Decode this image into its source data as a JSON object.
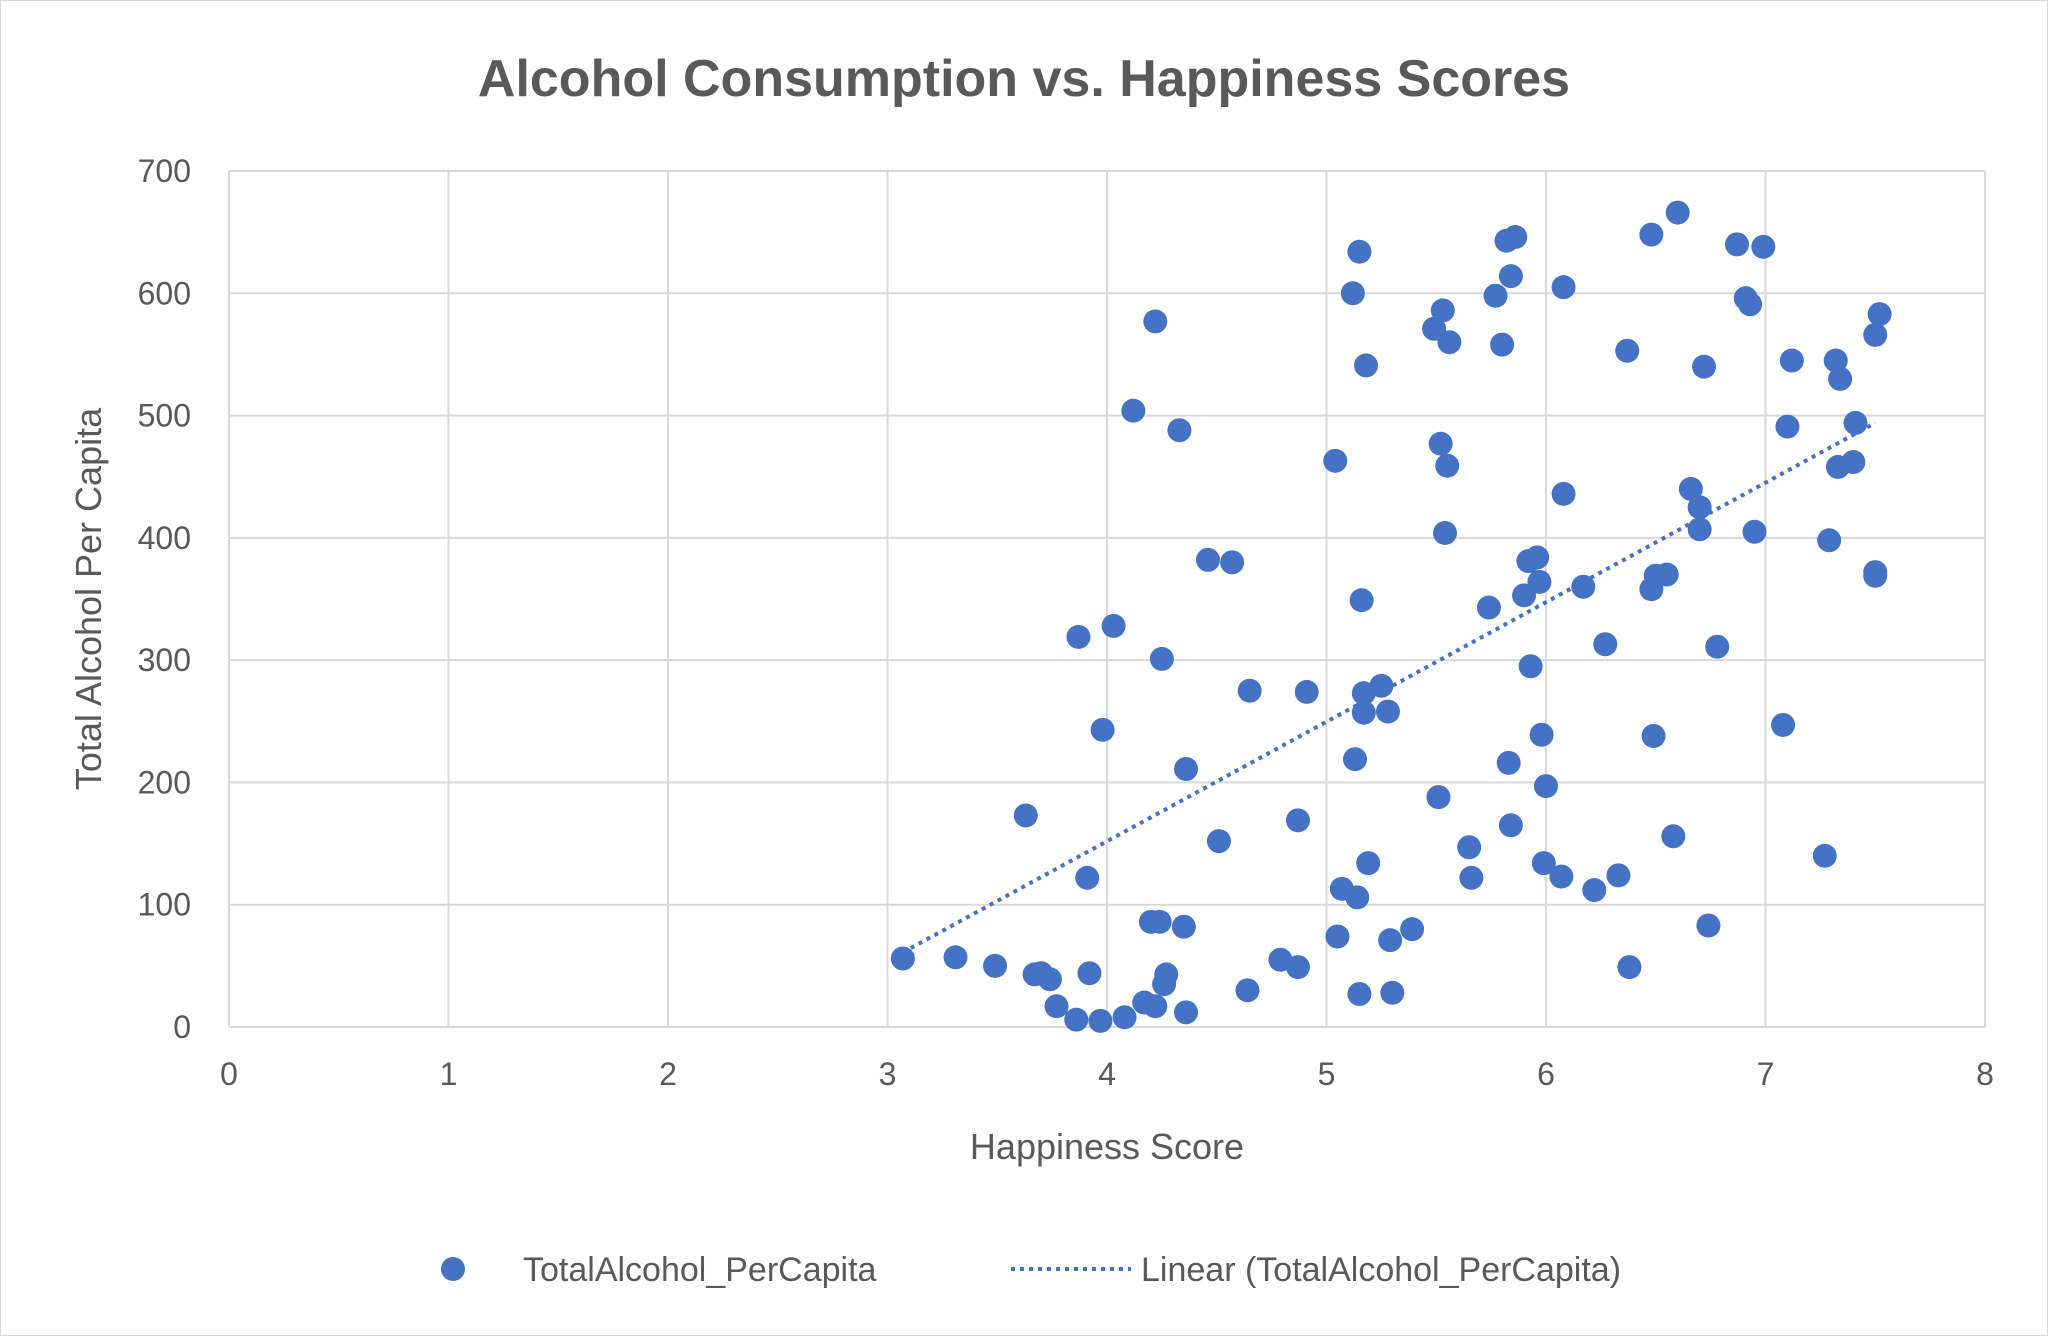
{
  "chart_data": {
    "type": "scatter",
    "title": "Alcohol Consumption vs. Happiness Scores",
    "xlabel": "Happiness Score",
    "ylabel": "Total Alcohol Per Capita",
    "xlim": [
      0,
      8
    ],
    "ylim": [
      0,
      700
    ],
    "xticks": [
      "0",
      "1",
      "2",
      "3",
      "4",
      "5",
      "6",
      "7",
      "8"
    ],
    "yticks": [
      "0",
      "100",
      "200",
      "300",
      "400",
      "500",
      "600",
      "700"
    ],
    "grid": true,
    "legend_position": "bottom",
    "series": [
      {
        "name": "TotalAlcohol_PerCapita",
        "color": "#4472c4",
        "points": [
          [
            3.07,
            56
          ],
          [
            3.31,
            57
          ],
          [
            3.49,
            50
          ],
          [
            3.63,
            173
          ],
          [
            3.67,
            43
          ],
          [
            3.7,
            44
          ],
          [
            3.74,
            39
          ],
          [
            3.77,
            17
          ],
          [
            3.86,
            6
          ],
          [
            3.87,
            319
          ],
          [
            3.91,
            122
          ],
          [
            3.92,
            44
          ],
          [
            3.97,
            5
          ],
          [
            3.98,
            243
          ],
          [
            4.03,
            328
          ],
          [
            4.08,
            8
          ],
          [
            4.12,
            504
          ],
          [
            4.17,
            20
          ],
          [
            4.2,
            86
          ],
          [
            4.22,
            17
          ],
          [
            4.22,
            577
          ],
          [
            4.24,
            86
          ],
          [
            4.25,
            301
          ],
          [
            4.26,
            35
          ],
          [
            4.27,
            43
          ],
          [
            4.33,
            488
          ],
          [
            4.35,
            82
          ],
          [
            4.36,
            12
          ],
          [
            4.36,
            211
          ],
          [
            4.46,
            382
          ],
          [
            4.51,
            152
          ],
          [
            4.57,
            380
          ],
          [
            4.64,
            30
          ],
          [
            4.65,
            275
          ],
          [
            4.79,
            55
          ],
          [
            4.87,
            49
          ],
          [
            4.87,
            169
          ],
          [
            4.91,
            274
          ],
          [
            5.04,
            463
          ],
          [
            5.05,
            74
          ],
          [
            5.07,
            113
          ],
          [
            5.12,
            600
          ],
          [
            5.13,
            219
          ],
          [
            5.14,
            106
          ],
          [
            5.15,
            634
          ],
          [
            5.15,
            27
          ],
          [
            5.16,
            349
          ],
          [
            5.17,
            273
          ],
          [
            5.17,
            257
          ],
          [
            5.18,
            541
          ],
          [
            5.19,
            134
          ],
          [
            5.25,
            279
          ],
          [
            5.28,
            258
          ],
          [
            5.29,
            71
          ],
          [
            5.3,
            28
          ],
          [
            5.39,
            80
          ],
          [
            5.49,
            571
          ],
          [
            5.51,
            188
          ],
          [
            5.52,
            477
          ],
          [
            5.53,
            586
          ],
          [
            5.54,
            404
          ],
          [
            5.55,
            459
          ],
          [
            5.56,
            560
          ],
          [
            5.65,
            147
          ],
          [
            5.66,
            122
          ],
          [
            5.74,
            343
          ],
          [
            5.77,
            598
          ],
          [
            5.8,
            558
          ],
          [
            5.82,
            643
          ],
          [
            5.83,
            216
          ],
          [
            5.84,
            165
          ],
          [
            5.84,
            614
          ],
          [
            5.86,
            646
          ],
          [
            5.9,
            353
          ],
          [
            5.92,
            381
          ],
          [
            5.93,
            295
          ],
          [
            5.96,
            384
          ],
          [
            5.97,
            364
          ],
          [
            5.98,
            239
          ],
          [
            5.99,
            134
          ],
          [
            6.0,
            197
          ],
          [
            6.07,
            123
          ],
          [
            6.08,
            436
          ],
          [
            6.08,
            605
          ],
          [
            6.17,
            360
          ],
          [
            6.22,
            112
          ],
          [
            6.27,
            313
          ],
          [
            6.33,
            124
          ],
          [
            6.37,
            553
          ],
          [
            6.38,
            49
          ],
          [
            6.48,
            648
          ],
          [
            6.48,
            358
          ],
          [
            6.49,
            238
          ],
          [
            6.5,
            369
          ],
          [
            6.55,
            370
          ],
          [
            6.58,
            156
          ],
          [
            6.6,
            666
          ],
          [
            6.66,
            440
          ],
          [
            6.7,
            425
          ],
          [
            6.7,
            407
          ],
          [
            6.72,
            540
          ],
          [
            6.74,
            83
          ],
          [
            6.78,
            311
          ],
          [
            6.87,
            640
          ],
          [
            6.91,
            596
          ],
          [
            6.93,
            591
          ],
          [
            6.95,
            405
          ],
          [
            6.99,
            638
          ],
          [
            7.08,
            247
          ],
          [
            7.1,
            491
          ],
          [
            7.12,
            545
          ],
          [
            7.27,
            140
          ],
          [
            7.29,
            398
          ],
          [
            7.32,
            545
          ],
          [
            7.33,
            458
          ],
          [
            7.34,
            530
          ],
          [
            7.4,
            462
          ],
          [
            7.41,
            494
          ],
          [
            7.5,
            372
          ],
          [
            7.5,
            566
          ],
          [
            7.5,
            369
          ],
          [
            7.52,
            583
          ]
        ]
      },
      {
        "name": "Linear (TotalAlcohol_PerCapita)",
        "type": "trendline",
        "color": "#4472c4",
        "points": [
          [
            3.07,
            61
          ],
          [
            7.5,
            494
          ]
        ]
      }
    ]
  }
}
